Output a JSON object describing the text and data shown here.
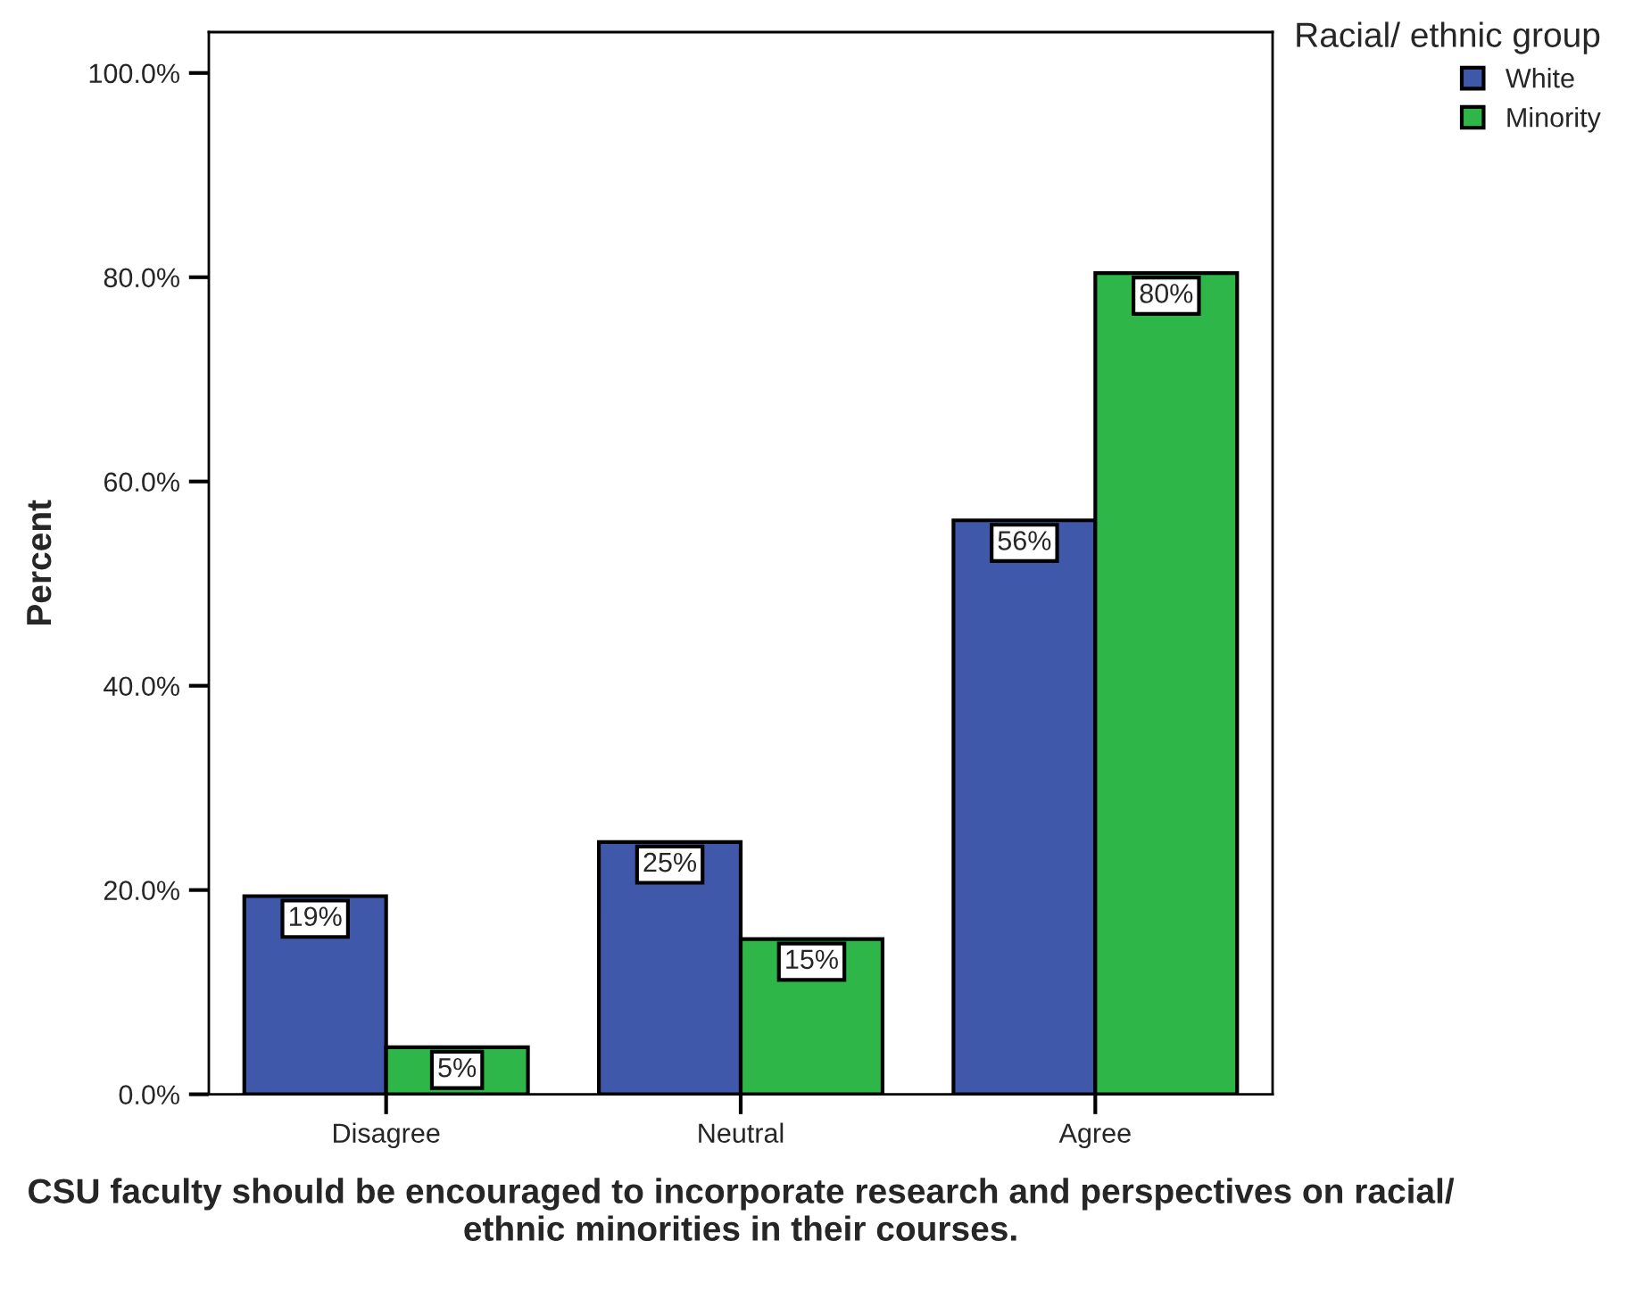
{
  "chart_data": {
    "type": "bar",
    "xlabel": "CSU faculty should be encouraged to incorporate research and perspectives on racial/ ethnic minorities in their courses.",
    "ylabel": "Percent",
    "legend_title": "Racial/ ethnic group",
    "categories": [
      "Disagree",
      "Neutral",
      "Agree"
    ],
    "series": [
      {
        "name": "White",
        "color": "#3f58a9",
        "values": [
          19.4,
          24.7,
          56.2
        ],
        "value_labels": [
          "19%",
          "25%",
          "56%"
        ]
      },
      {
        "name": "Minority",
        "color": "#2eb648",
        "values": [
          4.6,
          15.2,
          80.4
        ],
        "value_labels": [
          "5%",
          "15%",
          "80%"
        ]
      }
    ],
    "ylim": [
      0,
      104
    ],
    "yticks": [
      {
        "value": 0,
        "label": "0.0%"
      },
      {
        "value": 20,
        "label": "20.0%"
      },
      {
        "value": 40,
        "label": "40.0%"
      },
      {
        "value": 60,
        "label": "60.0%"
      },
      {
        "value": 80,
        "label": "80.0%"
      },
      {
        "value": 100,
        "label": "100.0%"
      }
    ],
    "grid": false,
    "legend": "top right"
  }
}
